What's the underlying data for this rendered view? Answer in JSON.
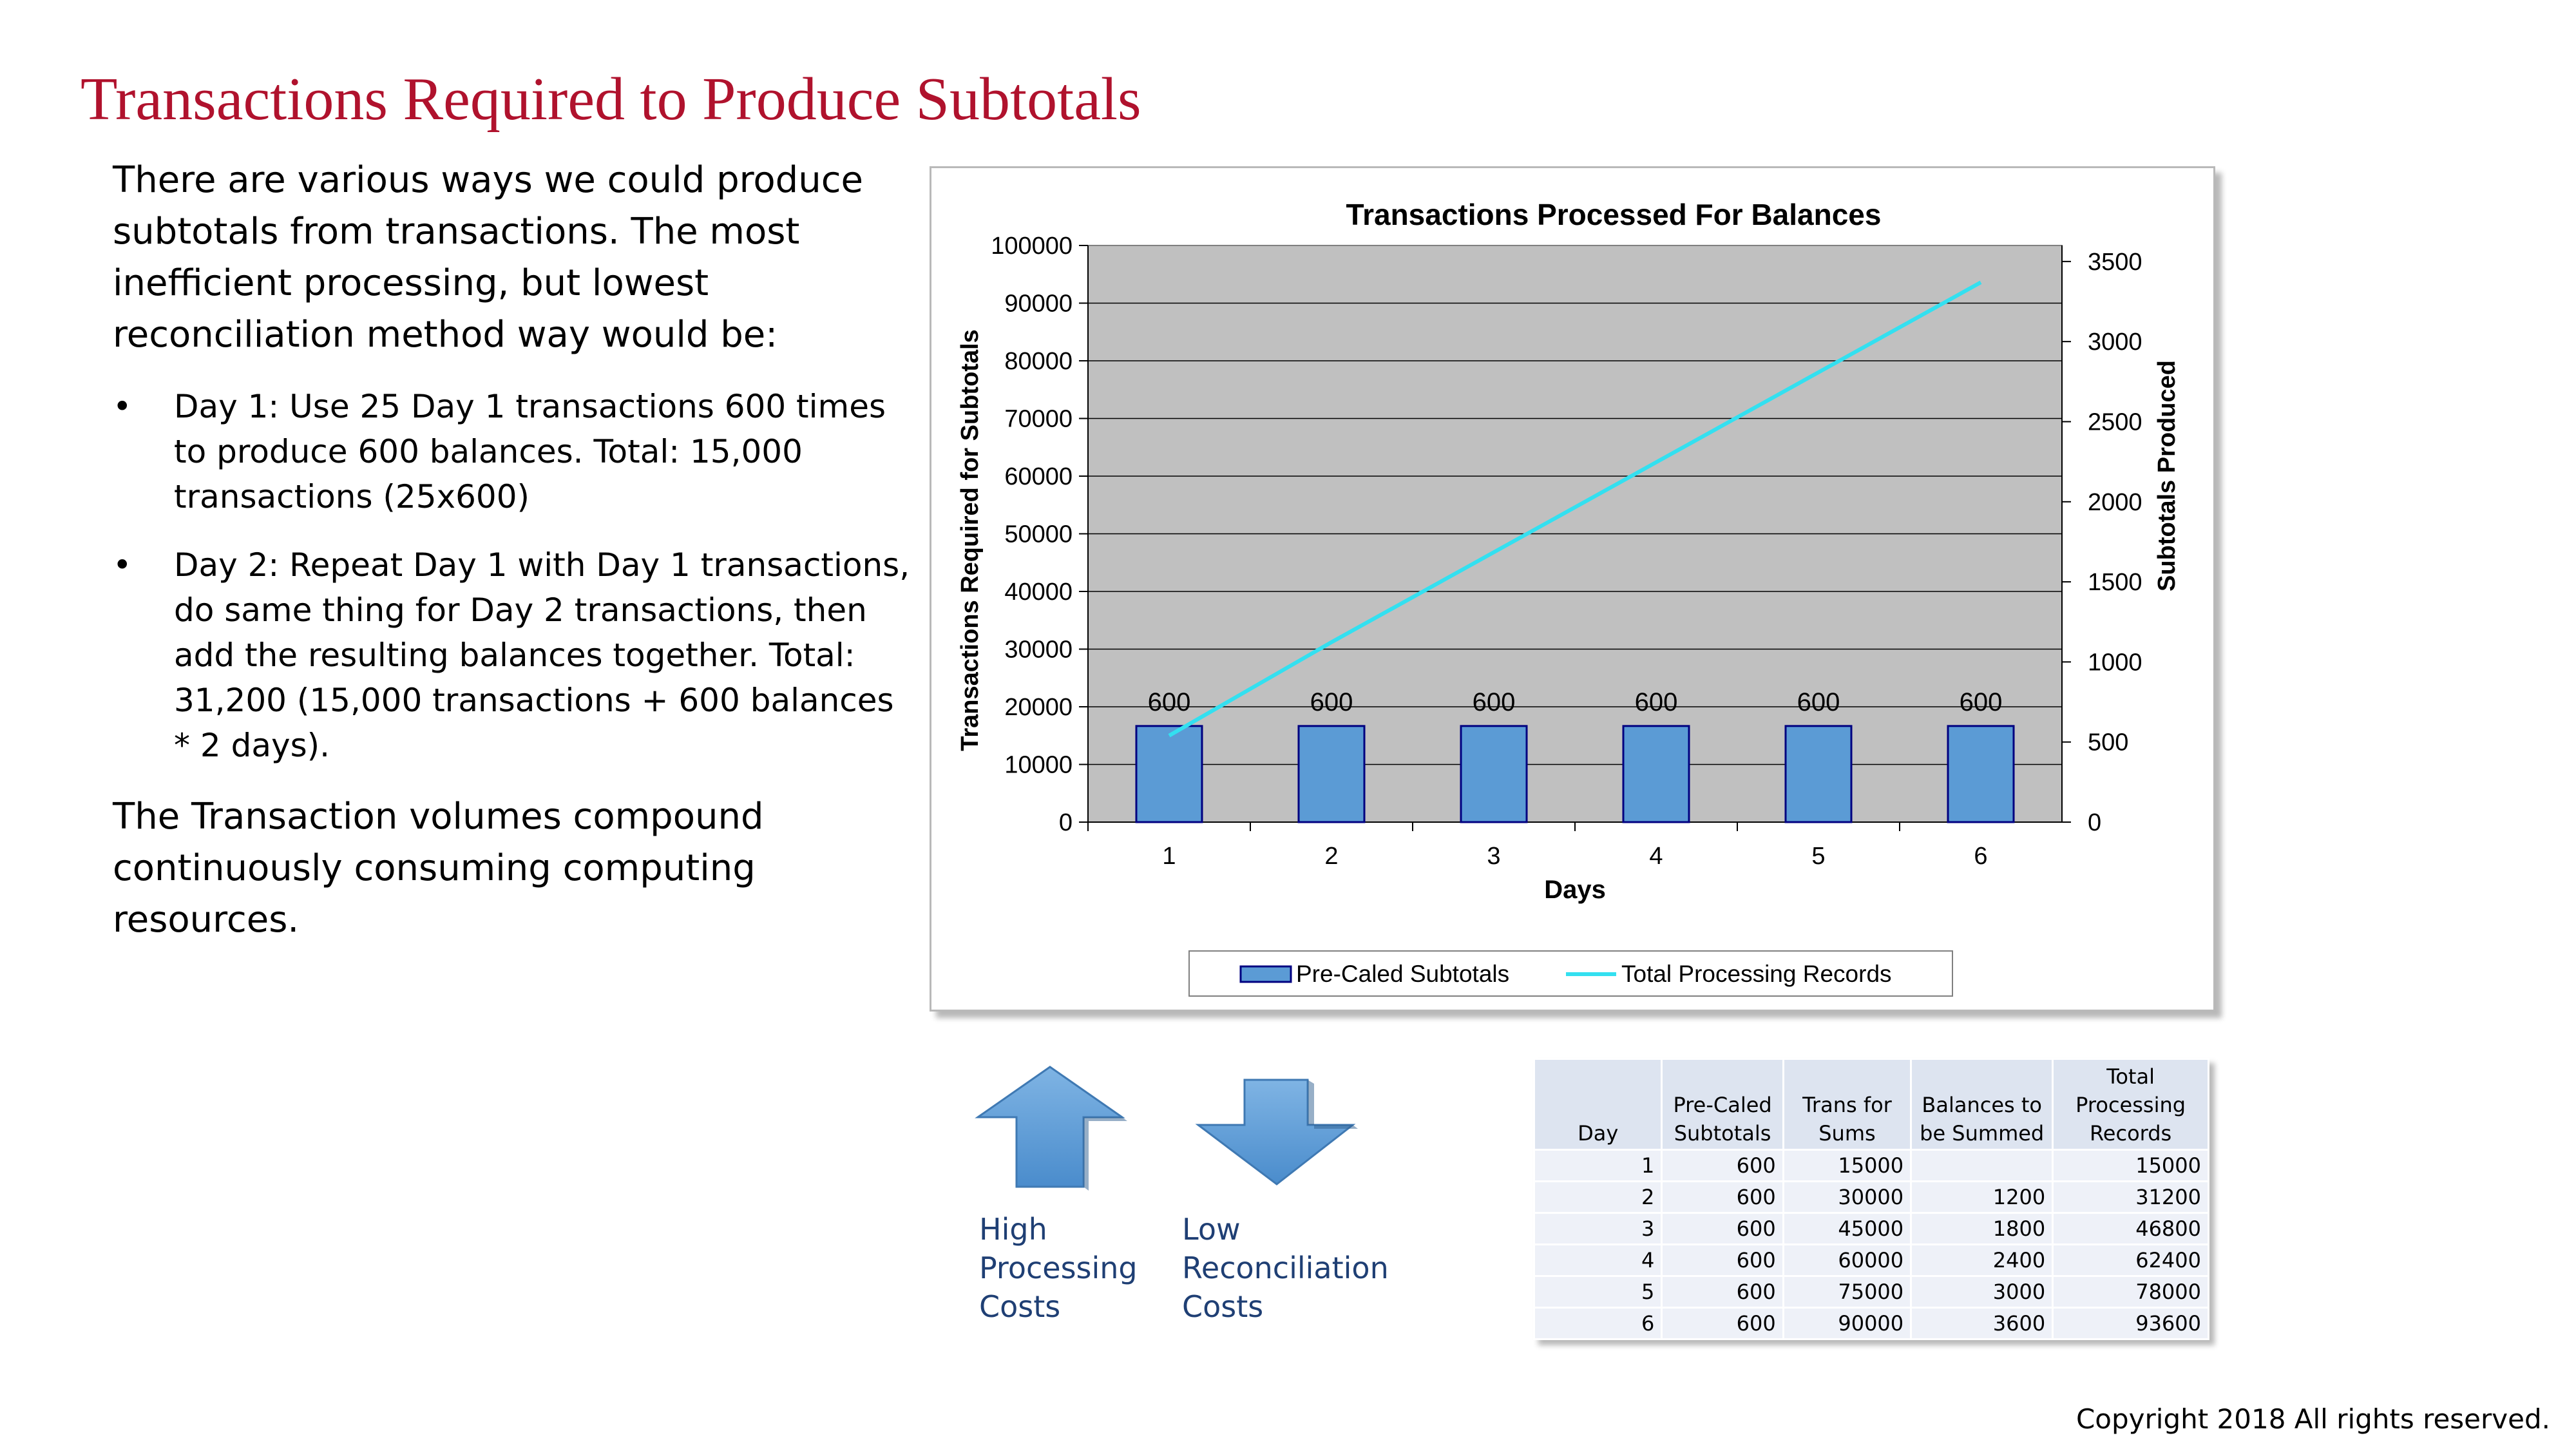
{
  "title": "Transactions Required to Produce Subtotals",
  "intro": "There are various ways we could produce subtotals from transactions.  The most inefficient processing, but lowest reconciliation method way would be:",
  "bullets": [
    {
      "marker": "•",
      "text": "Day 1: Use 25 Day 1 transactions 600 times to produce 600 balances. Total: 15,000 transactions (25x600)"
    },
    {
      "marker": "•",
      "text": "Day 2:  Repeat Day 1 with Day 1 transactions, do same thing for Day 2 transactions, then add the resulting balances together. Total: 31,200 (15,000 transactions + 600 balances * 2 days)."
    }
  ],
  "conclusion": "The Transaction volumes compound continuously consuming computing resources.",
  "chart_data": {
    "type": "bar",
    "title": "Transactions Processed For Balances",
    "xlabel": "Days",
    "ylabel": "Transactions Required for Subtotals",
    "y2label": "Subtotals Produced",
    "categories": [
      "1",
      "2",
      "3",
      "4",
      "5",
      "6"
    ],
    "ylim": [
      0,
      100000
    ],
    "y2lim": [
      0,
      3600
    ],
    "yticks": [
      0,
      10000,
      20000,
      30000,
      40000,
      50000,
      60000,
      70000,
      80000,
      90000,
      100000
    ],
    "y2ticks": [
      0,
      500,
      1000,
      1500,
      2000,
      2500,
      3000,
      3500
    ],
    "series": [
      {
        "name": "Pre-Caled Subtotals",
        "type": "bar",
        "axis": "y2",
        "values": [
          600,
          600,
          600,
          600,
          600,
          600
        ],
        "labels": [
          "600",
          "600",
          "600",
          "600",
          "600",
          "600"
        ],
        "color": "#5b9bd5"
      },
      {
        "name": "Total Processing Records",
        "type": "line",
        "axis": "y",
        "values": [
          15000,
          31200,
          46800,
          62400,
          78000,
          93600
        ],
        "color": "#33e0f0"
      }
    ],
    "legend_position": "bottom",
    "plot_bg": "#c0c0c0"
  },
  "arrows": {
    "high_label": "High Processing Costs",
    "low_label": "Low Reconciliation Costs",
    "color": "#5b9bd5"
  },
  "table": {
    "headers": [
      "Day",
      "Pre-Caled Subtotals",
      "Trans for Sums",
      "Balances to be Summed",
      "Total Processing Records"
    ],
    "rows": [
      [
        "1",
        "600",
        "15000",
        "",
        "15000"
      ],
      [
        "2",
        "600",
        "30000",
        "1200",
        "31200"
      ],
      [
        "3",
        "600",
        "45000",
        "1800",
        "46800"
      ],
      [
        "4",
        "600",
        "60000",
        "2400",
        "62400"
      ],
      [
        "5",
        "600",
        "75000",
        "3000",
        "78000"
      ],
      [
        "6",
        "600",
        "90000",
        "3600",
        "93600"
      ]
    ]
  },
  "copyright": "Copyright 2018  All rights reserved."
}
